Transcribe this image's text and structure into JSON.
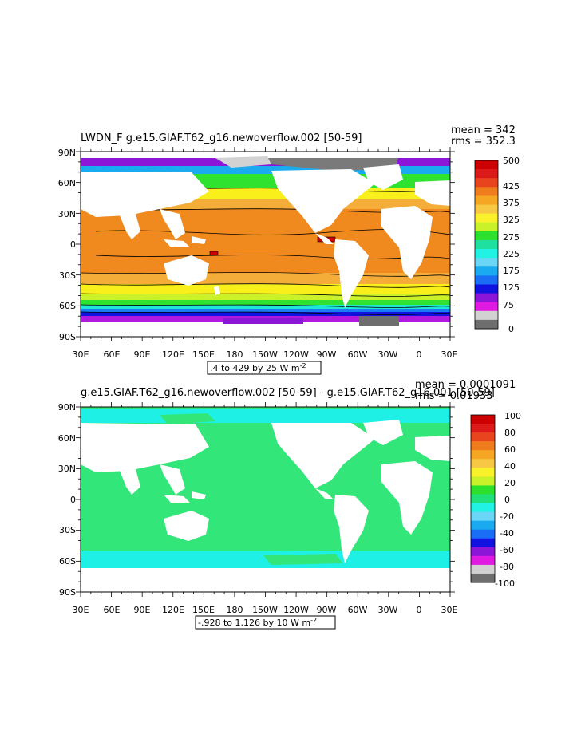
{
  "panels": [
    {
      "id": "top",
      "title": "LWDN_F  g.e15.GIAF.T62_g16.newoverflow.002  [50-59]",
      "stats": {
        "mean": "mean = 342",
        "rms": "rms = 352.3"
      },
      "range_note": ".4 to 429 by 25  W m",
      "range_exp": "-2",
      "lat_labels": [
        "90N",
        "60N",
        "30N",
        "0",
        "30S",
        "60S",
        "90S"
      ],
      "lon_labels": [
        "30E",
        "60E",
        "90E",
        "120E",
        "150E",
        "180",
        "150W",
        "120W",
        "90W",
        "60W",
        "30W",
        "0",
        "30E"
      ],
      "colorbar": {
        "labels": [
          "500",
          "425",
          "375",
          "325",
          "275",
          "225",
          "175",
          "125",
          "75",
          "0"
        ],
        "colors": [
          "#cc0000",
          "#dd1a1a",
          "#e8451f",
          "#f07d1d",
          "#f5a623",
          "#f7c843",
          "#f9f12a",
          "#c9f22a",
          "#2ee02e",
          "#20e0a0",
          "#22f2e4",
          "#6ad6f5",
          "#1aaaf0",
          "#1a6ef5",
          "#1212e0",
          "#8c16d8",
          "#e01ae0",
          "#d2d2d2",
          "#6e6e6e"
        ]
      }
    },
    {
      "id": "bottom",
      "title": "g.e15.GIAF.T62_g16.newoverflow.002  [50-59]  -  g.e15.GIAF.T62_g16.001  [50-59]",
      "stats": {
        "mean": "mean = 0.0001091",
        "rms": "rms = 0.01933"
      },
      "range_note": "-.928 to 1.126 by 10  W m",
      "range_exp": "-2",
      "lat_labels": [
        "90N",
        "60N",
        "30N",
        "0",
        "30S",
        "60S",
        "90S"
      ],
      "lon_labels": [
        "30E",
        "60E",
        "90E",
        "120E",
        "150E",
        "180",
        "150W",
        "120W",
        "90W",
        "60W",
        "30W",
        "0",
        "30E"
      ],
      "colorbar": {
        "labels": [
          "100",
          "80",
          "60",
          "40",
          "20",
          "0",
          "-20",
          "-40",
          "-60",
          "-80",
          "-100"
        ],
        "colors": [
          "#cc0000",
          "#dd1a1a",
          "#e8451f",
          "#f07d1d",
          "#f5a623",
          "#f7c843",
          "#f9f12a",
          "#c9f22a",
          "#2ee02e",
          "#20e07a",
          "#22f2e4",
          "#6ad6f5",
          "#1aaaf0",
          "#1a6ef5",
          "#1212e0",
          "#8c16d8",
          "#e01ae0",
          "#d2d2d2",
          "#6e6e6e"
        ]
      }
    }
  ],
  "colors": {
    "band_red": "#cc0000",
    "band_orange": "#f08a1e",
    "band_lightorange": "#f5ad3a",
    "band_yellow": "#f9ef1a",
    "band_green": "#2fe22f",
    "band_cyan": "#1ee6d6",
    "band_blue": "#1a7cf2",
    "band_purple": "#b01ae0",
    "ice_gray": "#7a7a7a",
    "diff_green": "#33e67a",
    "diff_cyan": "#1ef0e6",
    "land": "#ffffff"
  }
}
